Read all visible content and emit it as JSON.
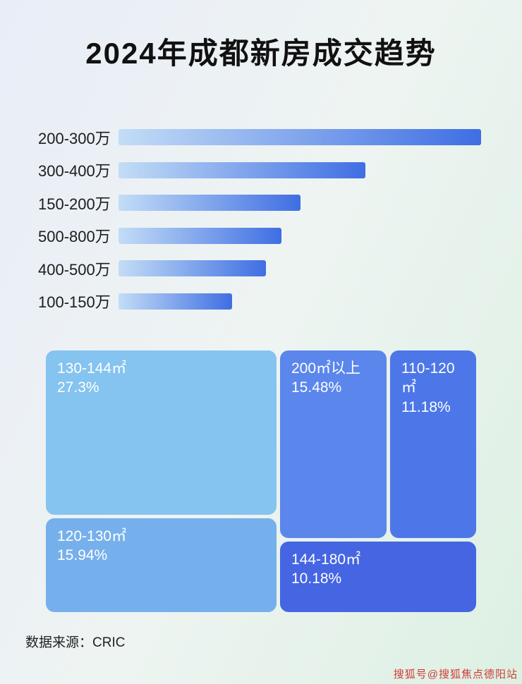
{
  "title": "2024年成都新房成交趋势",
  "footer": {
    "source_label": "数据来源：CRIC"
  },
  "watermark": "搜狐号@搜狐焦点德阳站",
  "colors": {
    "bar_gradient_start": "#c3ddf6",
    "bar_gradient_end": "#3f6ee3",
    "background_start": "#e9edf8",
    "background_mid": "#eef4f2",
    "background_end": "#ddf0e3",
    "title_color": "#111111",
    "watermark_color": "#cf3b35"
  },
  "chart_data": [
    {
      "type": "bar",
      "orientation": "horizontal",
      "title": "2024年成都新房成交趋势",
      "categories": [
        "200-300万",
        "300-400万",
        "150-200万",
        "500-800万",
        "400-500万",
        "100-150万"
      ],
      "values": [
        485,
        330,
        243,
        218,
        197,
        152
      ],
      "value_units": "relative bar length in px (no numeric axis or data labels shown)",
      "xlim": [
        0,
        485
      ],
      "grid": false,
      "legend": false
    },
    {
      "type": "treemap",
      "title": "",
      "items": [
        {
          "label": "130-144㎡",
          "value": 27.3,
          "value_label": "27.3%",
          "color": "#85c3f0"
        },
        {
          "label": "120-130㎡",
          "value": 15.94,
          "value_label": "15.94%",
          "color": "#76b0ec"
        },
        {
          "label": "200㎡以上",
          "value": 15.48,
          "value_label": "15.48%",
          "color": "#5b86ec"
        },
        {
          "label": "110-120㎡",
          "value": 11.18,
          "value_label": "11.18%",
          "color": "#4d77e8"
        },
        {
          "label": "144-180㎡",
          "value": 10.18,
          "value_label": "10.18%",
          "color": "#4565e3"
        }
      ]
    }
  ]
}
